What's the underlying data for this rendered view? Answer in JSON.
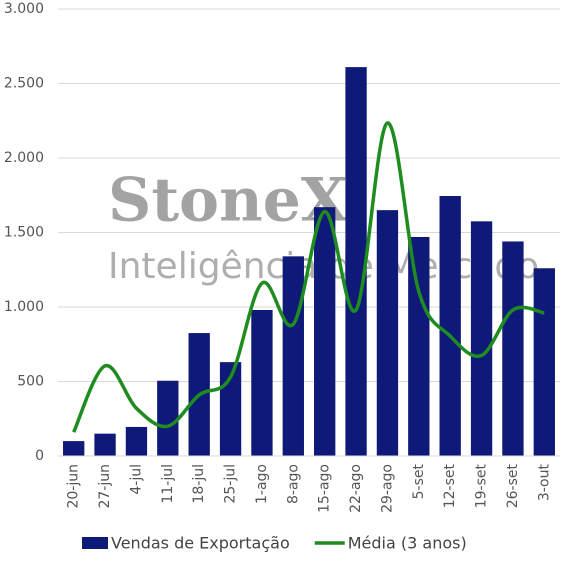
{
  "chart_data": {
    "type": "bar_line",
    "watermark": [
      "StoneX",
      "Inteligência de Mercado"
    ],
    "categories": [
      "20-jun",
      "27-jun",
      "4-jul",
      "11-jul",
      "18-jul",
      "25-jul",
      "1-ago",
      "8-ago",
      "15-ago",
      "22-ago",
      "29-ago",
      "5-set",
      "12-set",
      "19-set",
      "26-set",
      "3-out"
    ],
    "series": [
      {
        "name": "Vendas de Exportação",
        "type": "bar",
        "color": "#0f1a78",
        "values": [
          100,
          150,
          195,
          505,
          825,
          630,
          980,
          1340,
          1670,
          2610,
          1650,
          1470,
          1745,
          1575,
          1440,
          1260
        ]
      },
      {
        "name": "Média (3 anos)",
        "type": "line",
        "color": "#1e8c1e",
        "values": [
          160,
          605,
          320,
          200,
          410,
          530,
          1160,
          885,
          1640,
          980,
          2235,
          1105,
          805,
          675,
          980,
          960
        ]
      }
    ],
    "ylim": [
      0,
      3000
    ],
    "yticks": [
      {
        "value": 0,
        "label": "0"
      },
      {
        "value": 500,
        "label": "500"
      },
      {
        "value": 1000,
        "label": "1.000"
      },
      {
        "value": 1500,
        "label": "1.500"
      },
      {
        "value": 2000,
        "label": "2.000"
      },
      {
        "value": 2500,
        "label": "2.500"
      },
      {
        "value": 3000,
        "label": "3.000"
      }
    ],
    "grid": true
  }
}
